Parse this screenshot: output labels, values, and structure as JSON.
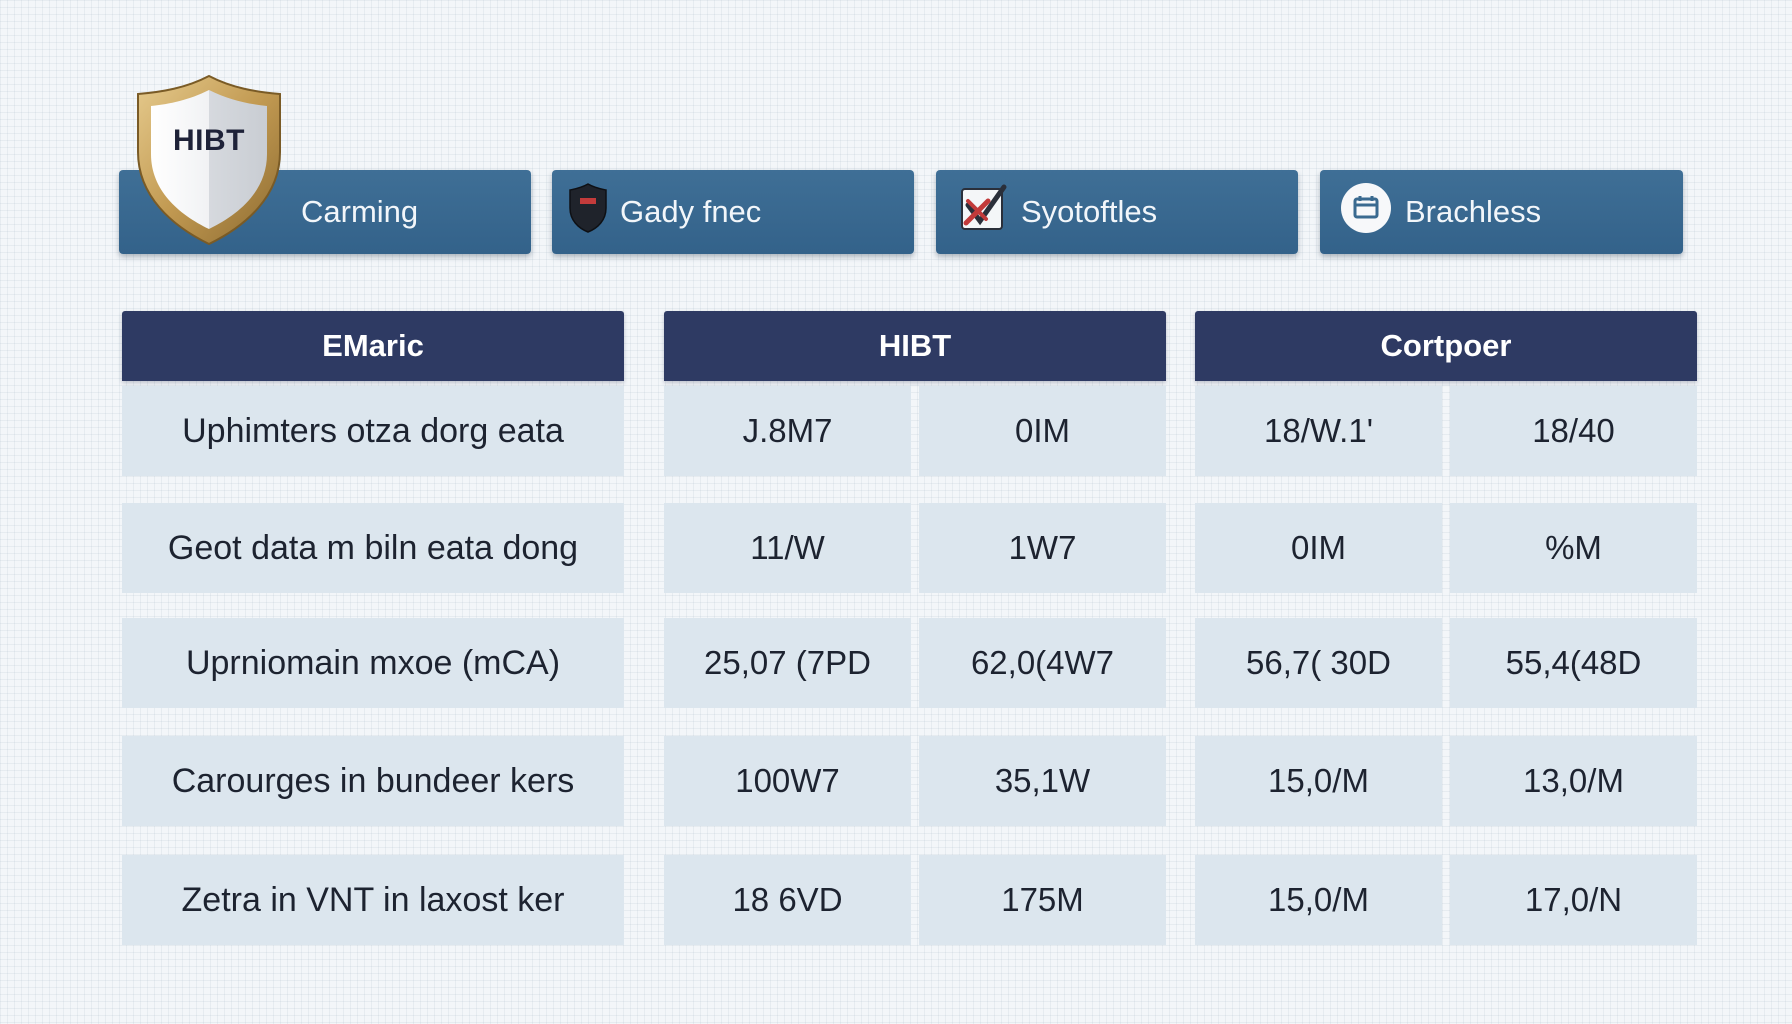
{
  "logo": {
    "text": "HIBT"
  },
  "tabs": [
    {
      "label": "Carming",
      "icon": "shield-icon"
    },
    {
      "label": "Gady fnec",
      "icon": "dark-shield-icon"
    },
    {
      "label": "Syotoftles",
      "icon": "checklist-icon"
    },
    {
      "label": "Brachless",
      "icon": "calendar-icon"
    }
  ],
  "table": {
    "headers": {
      "metric": "EMaric",
      "hibt": "HIBT",
      "competitor": "Cortpoer"
    },
    "rows": [
      {
        "label": "Uphimters otza dorg eata",
        "hibt_1": "J.8M7",
        "hibt_2": "0IM",
        "comp_1": "18/W.1'",
        "comp_2": "18/40"
      },
      {
        "label": "Geot data m biln eata dong",
        "hibt_1": "11/W",
        "hibt_2": "1W7",
        "comp_1": "0IM",
        "comp_2": "%M"
      },
      {
        "label": "Uprniomain mxoe (mCA)",
        "hibt_1": "25,07 (7PD",
        "hibt_2": "62,0(4W7",
        "comp_1": "56,7( 30D",
        "comp_2": "55,4(48D"
      },
      {
        "label": "Carourges in bundeer kers",
        "hibt_1": "100W7",
        "hibt_2": "35,1W",
        "comp_1": "15,0/M",
        "comp_2": "13,0/M"
      },
      {
        "label": "Zetra in VNT in laxost ker",
        "hibt_1": "18 6VD",
        "hibt_2": "175M",
        "comp_1": "15,0/M",
        "comp_2": "17,0/N"
      }
    ]
  },
  "colors": {
    "tab_background": "#3a6a90",
    "header_background": "#2e3a63",
    "cell_background": "#dce6ee",
    "shield_gold": "#c9a45c"
  }
}
